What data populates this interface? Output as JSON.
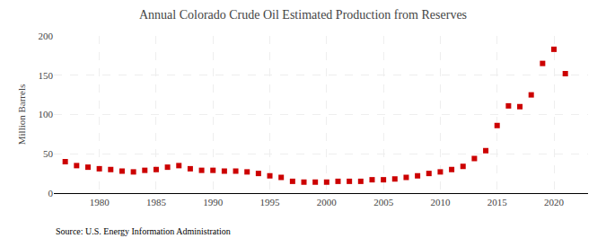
{
  "chart_data": {
    "type": "scatter",
    "title": "Annual Colorado Crude Oil Estimated Production from Reserves",
    "ylabel": "Million Barrels",
    "annotations": [
      "Source: U.S. Energy Information Administration"
    ],
    "x": [
      1977,
      1978,
      1979,
      1980,
      1981,
      1982,
      1983,
      1984,
      1985,
      1986,
      1987,
      1988,
      1989,
      1990,
      1991,
      1992,
      1993,
      1994,
      1995,
      1996,
      1997,
      1998,
      1999,
      2000,
      2001,
      2002,
      2003,
      2004,
      2005,
      2006,
      2007,
      2008,
      2009,
      2010,
      2011,
      2012,
      2013,
      2014,
      2015,
      2016,
      2017,
      2018,
      2019,
      2020,
      2021
    ],
    "values": [
      40,
      35,
      33,
      31,
      30,
      28,
      27,
      29,
      30,
      33,
      35,
      31,
      29,
      29,
      28,
      28,
      27,
      25,
      22,
      20,
      15,
      14,
      14,
      14,
      15,
      15,
      15,
      17,
      17,
      18,
      20,
      22,
      25,
      27,
      30,
      34,
      44,
      54,
      86,
      111,
      110,
      125,
      165,
      183,
      152
    ],
    "color": "#CC0000",
    "marker": "square",
    "xlim": [
      1976,
      2023
    ],
    "xticks": [
      1980,
      1985,
      1990,
      1995,
      2000,
      2005,
      2010,
      2015,
      2020
    ],
    "ylim": [
      0,
      200
    ],
    "yticks": [
      0,
      50,
      100,
      150,
      200
    ],
    "grid": true
  }
}
